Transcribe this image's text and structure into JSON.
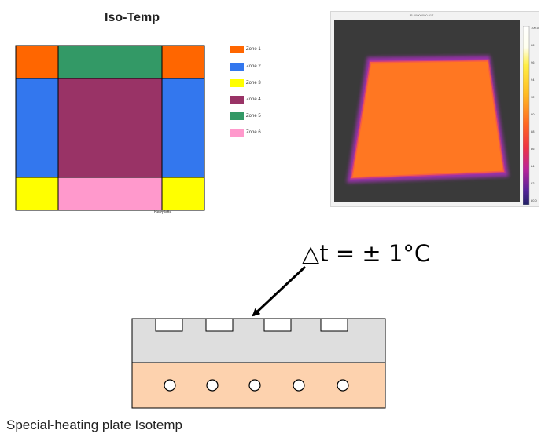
{
  "figure": {
    "title": "Iso-Temp",
    "legend": [
      {
        "label": "Zone 1",
        "color": "#ff6600"
      },
      {
        "label": "Zone 2",
        "color": "#3377ee"
      },
      {
        "label": "Zone 3",
        "color": "#ffff00"
      },
      {
        "label": "Zone 4",
        "color": "#993366"
      },
      {
        "label": "Zone 5",
        "color": "#339966"
      },
      {
        "label": "Zone 6",
        "color": "#ff99cc"
      }
    ],
    "map_footnote": "Heizplatte"
  },
  "thermal_image": {
    "header": "IR 00000000 917",
    "scale_labels": [
      "100.0",
      "98",
      "96",
      "94",
      "92",
      "90",
      "88",
      "86",
      "84",
      "82",
      "80.0"
    ],
    "colors": {
      "background": "#3a3a3a",
      "halo": "#9933aa",
      "plate": "#ff7722"
    }
  },
  "section": {
    "annotation": "△t = ± 1°C",
    "colors": {
      "top_plate": "#dedede",
      "bottom_plate": "#fdd2ae"
    },
    "channel_count": 4,
    "heater_count": 5
  },
  "caption": "Special-heating plate Isotemp"
}
